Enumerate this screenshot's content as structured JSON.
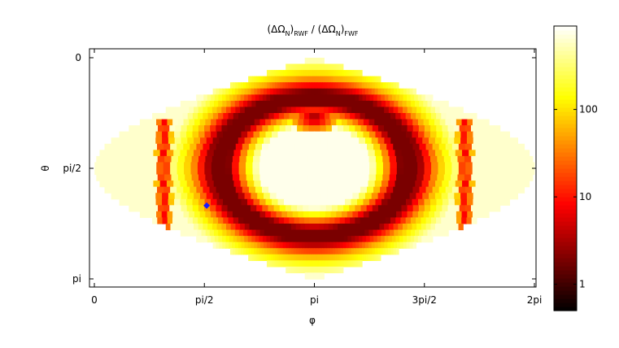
{
  "chart_data": {
    "type": "heatmap",
    "projection": "sinusoidal equal-area map",
    "title": {
      "open": "(ΔΩ",
      "sub_n1": "N",
      "close1": ")",
      "sub_rwf": "RWF",
      "slash": " / (ΔΩ",
      "sub_n2": "N",
      "close2": ")",
      "sub_fwf": "FWF"
    },
    "xlabel": "φ",
    "ylabel": "θ",
    "xlim": [
      0,
      6.2832
    ],
    "ylim": [
      0,
      3.1416
    ],
    "x_ticks": [
      {
        "value": 0,
        "label": "0"
      },
      {
        "value": 1.5708,
        "label": "pi/2"
      },
      {
        "value": 3.1416,
        "label": "pi"
      },
      {
        "value": 4.7124,
        "label": "3pi/2"
      },
      {
        "value": 6.2832,
        "label": "2pi"
      }
    ],
    "y_ticks": [
      {
        "value": 0,
        "label": "0"
      },
      {
        "value": 1.5708,
        "label": "pi/2"
      },
      {
        "value": 3.1416,
        "label": "pi"
      }
    ],
    "colorbar": {
      "scale": "log",
      "range": [
        0.5,
        900
      ],
      "colormap": "hot",
      "ticks": [
        {
          "value": 1,
          "label": "1"
        },
        {
          "value": 10,
          "label": "10"
        },
        {
          "value": 100,
          "label": "100"
        }
      ]
    },
    "marker": {
      "phi": 1.36,
      "theta": 2.1,
      "color": "#1a1aff"
    },
    "grid": false
  }
}
